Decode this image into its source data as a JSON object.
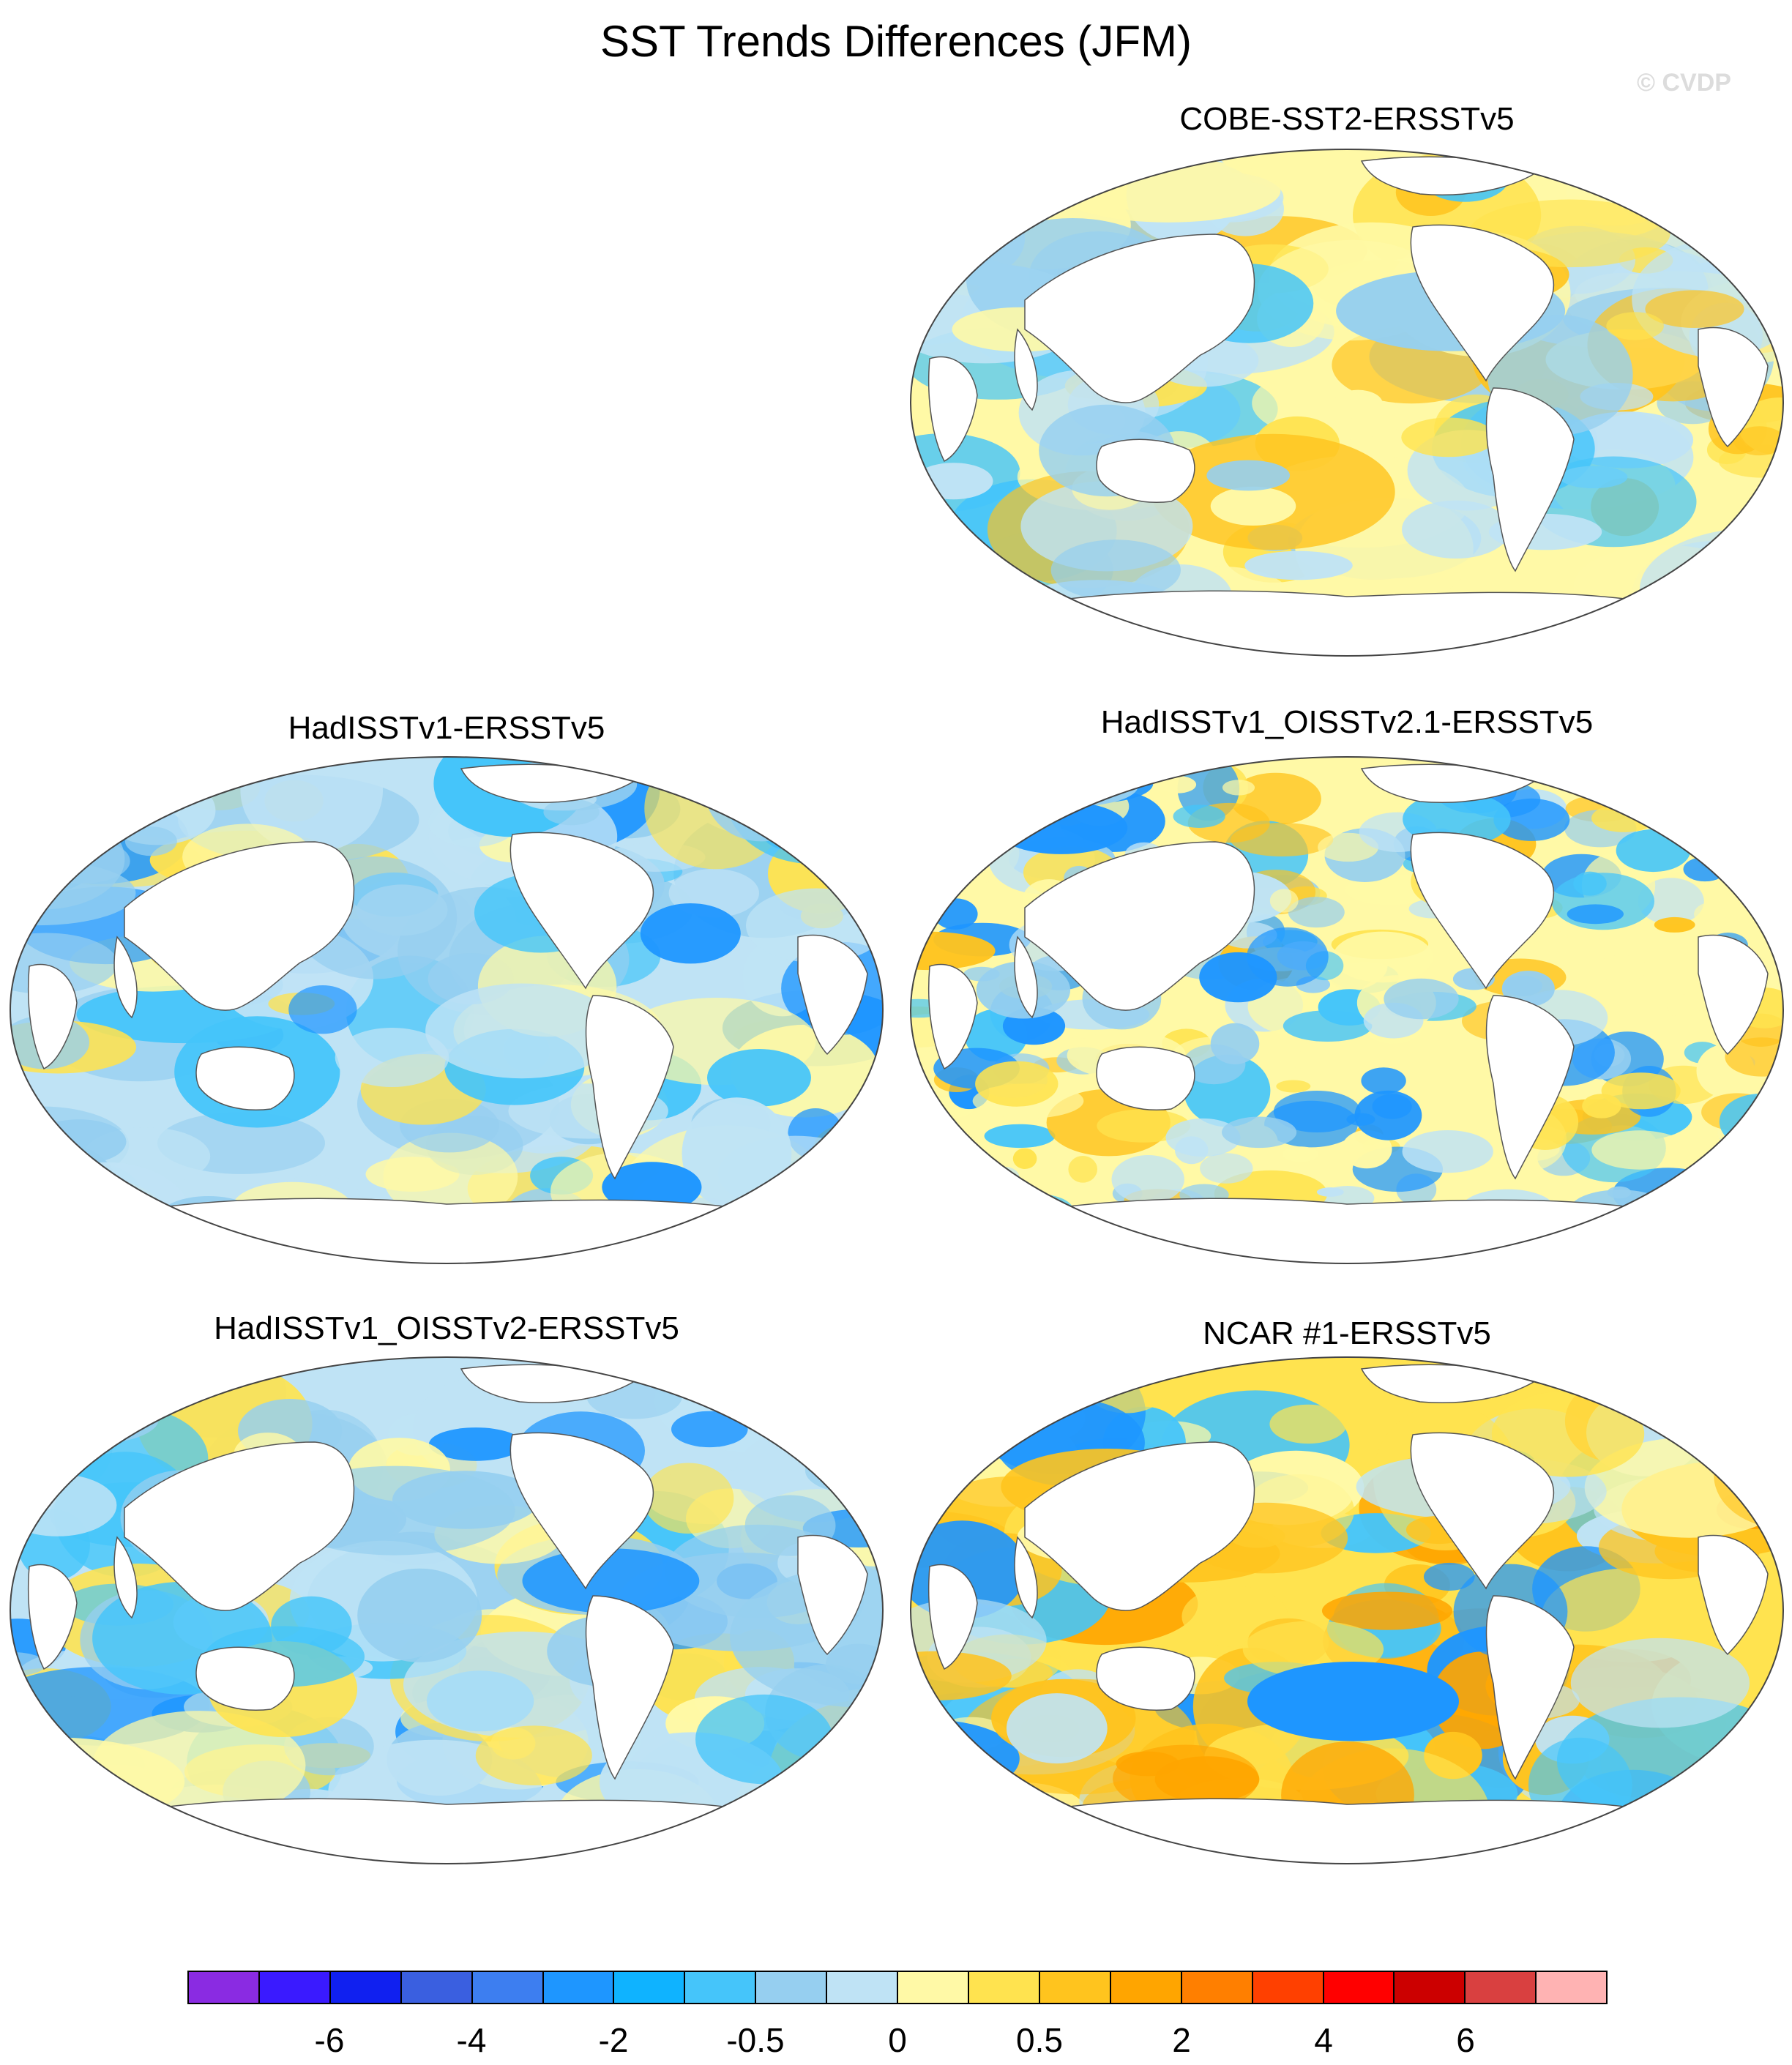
{
  "figure": {
    "title": "SST Trends Differences (JFM)",
    "watermark": "© CVDP"
  },
  "panels": [
    {
      "id": "cobe",
      "title": "COBE-SST2-ERSSTv5",
      "style": "mixed",
      "highlight": "none"
    },
    {
      "id": "hadisst",
      "title": "HadISSTv1-ERSSTv5",
      "style": "cool",
      "highlight": "none"
    },
    {
      "id": "hadisst-oisst21",
      "title": "HadISSTv1_OISSTv2.1-ERSSTv5",
      "style": "noisy",
      "highlight": "none"
    },
    {
      "id": "hadisst-oisst2",
      "title": "HadISSTv1_OISSTv2-ERSSTv5",
      "style": "cool",
      "highlight": "none"
    },
    {
      "id": "ncar1",
      "title": "NCAR #1-ERSSTv5",
      "style": "warm",
      "highlight": "none"
    }
  ],
  "colorbar": {
    "colors": [
      "#8a2be2",
      "#3a1aff",
      "#1020f0",
      "#3a5fe0",
      "#3d7ef0",
      "#1e96ff",
      "#0fb3ff",
      "#45c5fa",
      "#96cff0",
      "#bfe3f5",
      "#fff9a6",
      "#ffe34f",
      "#ffc41e",
      "#ffa500",
      "#ff7f00",
      "#ff4000",
      "#ff0000",
      "#cc0000",
      "#d94040",
      "#ffb3b3"
    ],
    "tick_labels": [
      "-6",
      "-4",
      "-2",
      "-0.5",
      "0",
      "0.5",
      "2",
      "4",
      "6"
    ]
  }
}
